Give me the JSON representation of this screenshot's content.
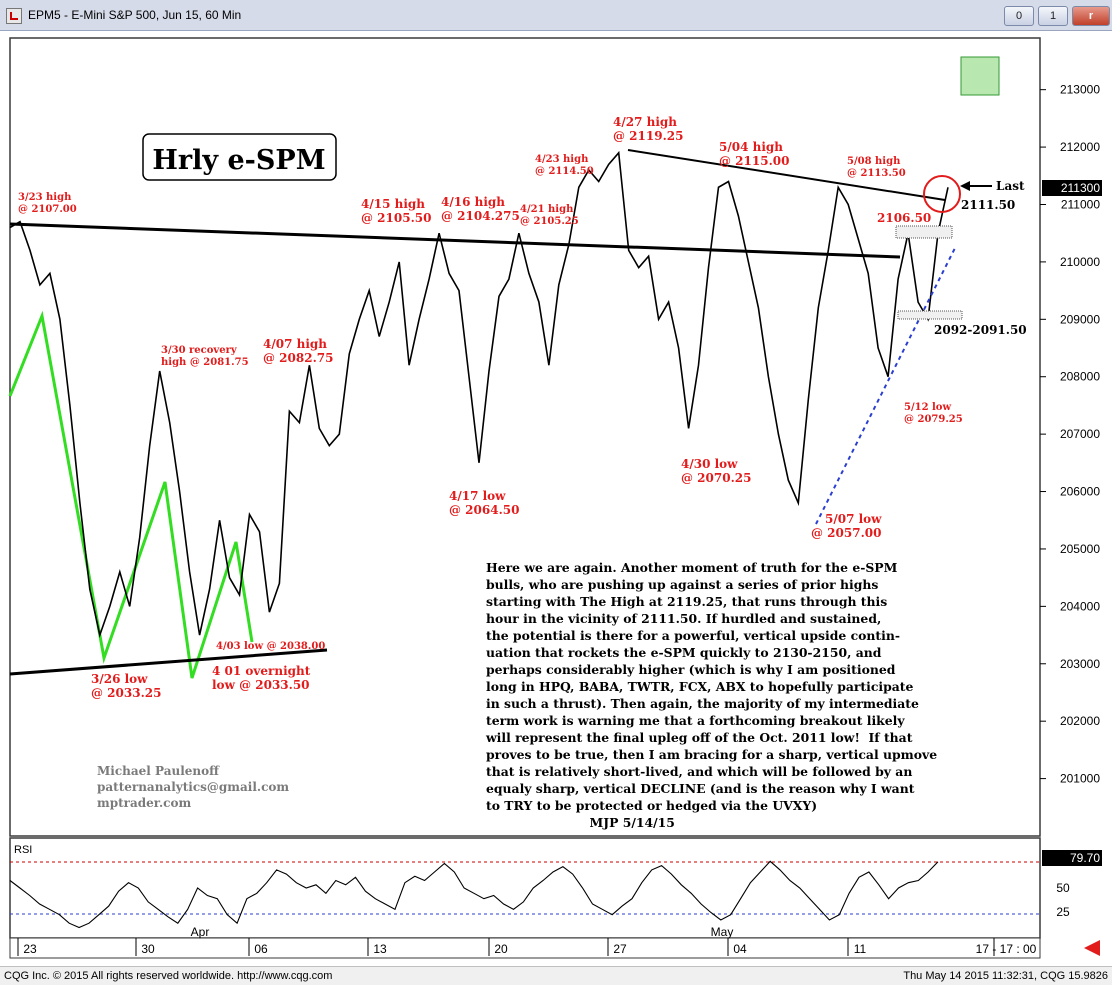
{
  "window": {
    "title": "EPM5 - E-Mini S&P 500, Jun 15, 60 Min",
    "minimize_label": "0",
    "maximize_label": "1",
    "close_label": "r"
  },
  "footer": {
    "copyright": "CQG Inc. © 2015 All rights reserved worldwide. http://www.cqg.com",
    "datetime": "Thu May 14 2015 11:32:31, CQG 15.9826"
  },
  "commentary": {
    "lines": [
      "Here we are again. Another moment of truth for the e-SPM",
      "bulls, who are pushing up against a series of prior highs",
      "starting with The High at 2119.25, that runs through this",
      "hour in the vicinity of 2111.50. If hurdled and sustained,",
      "the potential is there for a powerful, vertical upside contin-",
      "uation that rockets the e-SPM quickly to 2130-2150, and",
      "perhaps considerably higher (which is why I am positioned",
      "long in HPQ, BABA, TWTR, FCX, ABX to hopefully participate",
      "in such a thrust). Then again, the majority of my intermediate",
      "term work is warning me that a forthcoming breakout likely",
      "will represent the final upleg off of the Oct. 2011 low!  If that",
      "proves to be true, then I am bracing for a sharp, vertical upmove",
      "that is relatively short-lived, and which will be followed by an",
      "equaly sharp, vertical DECLINE (and is the reason why I want",
      "to TRY to be protected or hedged via the UVXY)",
      "                        MJP 5/14/15"
    ]
  },
  "chart_data": {
    "type": "line",
    "title": "Hrly e-SPM",
    "y_axis": {
      "ticks": [
        201000,
        202000,
        203000,
        204000,
        205000,
        206000,
        207000,
        208000,
        209000,
        210000,
        211000,
        212000,
        213000
      ],
      "ylim": [
        200000,
        213900
      ]
    },
    "x_axis": {
      "tick_labels": [
        "23",
        "30",
        "Apr",
        "06",
        "13",
        "20",
        "27",
        "May",
        "04",
        "11",
        "17 - 17 : 00"
      ]
    },
    "last_price_label": "211300",
    "last_label": "Last",
    "price_path": [
      {
        "x": 0,
        "y": 210600
      },
      {
        "x": 0.5,
        "y": 210700
      },
      {
        "x": 1,
        "y": 210200
      },
      {
        "x": 1.5,
        "y": 209600
      },
      {
        "x": 2,
        "y": 209800
      },
      {
        "x": 2.5,
        "y": 209000
      },
      {
        "x": 3,
        "y": 207500
      },
      {
        "x": 3.5,
        "y": 205800
      },
      {
        "x": 4,
        "y": 204300
      },
      {
        "x": 4.5,
        "y": 203500
      },
      {
        "x": 5,
        "y": 204000
      },
      {
        "x": 5.5,
        "y": 204600
      },
      {
        "x": 6,
        "y": 204000
      },
      {
        "x": 6.5,
        "y": 205200
      },
      {
        "x": 7,
        "y": 206800
      },
      {
        "x": 7.5,
        "y": 208100
      },
      {
        "x": 8,
        "y": 207200
      },
      {
        "x": 8.5,
        "y": 206000
      },
      {
        "x": 9,
        "y": 204600
      },
      {
        "x": 9.5,
        "y": 203500
      },
      {
        "x": 10,
        "y": 204300
      },
      {
        "x": 10.5,
        "y": 205500
      },
      {
        "x": 11,
        "y": 204500
      },
      {
        "x": 11.5,
        "y": 204200
      },
      {
        "x": 12,
        "y": 205600
      },
      {
        "x": 12.5,
        "y": 205300
      },
      {
        "x": 13,
        "y": 203900
      },
      {
        "x": 13.5,
        "y": 204400
      },
      {
        "x": 14,
        "y": 207400
      },
      {
        "x": 14.5,
        "y": 207200
      },
      {
        "x": 15,
        "y": 208200
      },
      {
        "x": 15.5,
        "y": 207100
      },
      {
        "x": 16,
        "y": 206800
      },
      {
        "x": 16.5,
        "y": 207000
      },
      {
        "x": 17,
        "y": 208400
      },
      {
        "x": 17.5,
        "y": 209000
      },
      {
        "x": 18,
        "y": 209500
      },
      {
        "x": 18.5,
        "y": 208700
      },
      {
        "x": 19,
        "y": 209300
      },
      {
        "x": 19.5,
        "y": 210000
      },
      {
        "x": 20,
        "y": 208200
      },
      {
        "x": 20.5,
        "y": 209000
      },
      {
        "x": 21,
        "y": 209700
      },
      {
        "x": 21.5,
        "y": 210500
      },
      {
        "x": 22,
        "y": 209800
      },
      {
        "x": 22.5,
        "y": 209500
      },
      {
        "x": 23,
        "y": 208000
      },
      {
        "x": 23.5,
        "y": 206500
      },
      {
        "x": 24,
        "y": 208100
      },
      {
        "x": 24.5,
        "y": 209400
      },
      {
        "x": 25,
        "y": 209700
      },
      {
        "x": 25.5,
        "y": 210500
      },
      {
        "x": 26,
        "y": 209800
      },
      {
        "x": 26.5,
        "y": 209300
      },
      {
        "x": 27,
        "y": 208200
      },
      {
        "x": 27.5,
        "y": 209600
      },
      {
        "x": 28,
        "y": 210300
      },
      {
        "x": 28.5,
        "y": 211300
      },
      {
        "x": 29,
        "y": 211600
      },
      {
        "x": 29.5,
        "y": 211400
      },
      {
        "x": 30,
        "y": 211700
      },
      {
        "x": 30.5,
        "y": 211900
      },
      {
        "x": 31,
        "y": 210200
      },
      {
        "x": 31.5,
        "y": 209900
      },
      {
        "x": 32,
        "y": 210100
      },
      {
        "x": 32.5,
        "y": 209000
      },
      {
        "x": 33,
        "y": 209300
      },
      {
        "x": 33.5,
        "y": 208500
      },
      {
        "x": 34,
        "y": 207100
      },
      {
        "x": 34.5,
        "y": 208200
      },
      {
        "x": 35,
        "y": 209900
      },
      {
        "x": 35.5,
        "y": 211300
      },
      {
        "x": 36,
        "y": 211400
      },
      {
        "x": 36.5,
        "y": 210800
      },
      {
        "x": 37,
        "y": 210000
      },
      {
        "x": 37.5,
        "y": 209200
      },
      {
        "x": 38,
        "y": 208000
      },
      {
        "x": 38.5,
        "y": 207000
      },
      {
        "x": 39,
        "y": 206200
      },
      {
        "x": 39.5,
        "y": 205800
      },
      {
        "x": 40,
        "y": 207600
      },
      {
        "x": 40.5,
        "y": 209200
      },
      {
        "x": 41,
        "y": 210200
      },
      {
        "x": 41.5,
        "y": 211300
      },
      {
        "x": 42,
        "y": 211000
      },
      {
        "x": 42.5,
        "y": 210400
      },
      {
        "x": 43,
        "y": 209800
      },
      {
        "x": 43.5,
        "y": 208500
      },
      {
        "x": 44,
        "y": 208000
      },
      {
        "x": 44.5,
        "y": 209700
      },
      {
        "x": 45,
        "y": 210500
      },
      {
        "x": 45.5,
        "y": 209300
      },
      {
        "x": 46,
        "y": 209000
      },
      {
        "x": 46.5,
        "y": 210500
      },
      {
        "x": 47,
        "y": 211300
      }
    ],
    "rsi": {
      "label": "RSI",
      "value_label": "79.70",
      "ticks": [
        25,
        50
      ],
      "ylim": [
        10,
        100
      ],
      "overbought": 80,
      "oversold": 20,
      "values": [
        62,
        55,
        48,
        40,
        35,
        30,
        22,
        18,
        22,
        30,
        38,
        52,
        60,
        55,
        42,
        35,
        28,
        22,
        35,
        55,
        48,
        45,
        30,
        22,
        45,
        50,
        60,
        72,
        68,
        60,
        55,
        58,
        50,
        62,
        58,
        65,
        52,
        45,
        40,
        35,
        60,
        66,
        62,
        70,
        78,
        70,
        55,
        50,
        45,
        48,
        40,
        35,
        42,
        55,
        62,
        70,
        75,
        68,
        55,
        40,
        35,
        30,
        38,
        45,
        60,
        72,
        76,
        68,
        58,
        50,
        40,
        32,
        25,
        30,
        45,
        60,
        70,
        80,
        72,
        62,
        55,
        45,
        35,
        25,
        30,
        50,
        65,
        70,
        58,
        45,
        55,
        60,
        62,
        70,
        79.7
      ]
    },
    "legend": "none",
    "grid": "off"
  },
  "annotations": {
    "hrly_box": "Hrly e-SPM",
    "h_323": [
      "3/23 high",
      "@ 2107.00"
    ],
    "h_415": [
      "4/15 high",
      "@ 2105.50"
    ],
    "h_416": [
      "4/16 high",
      "@ 2104.275"
    ],
    "h_421": [
      "4/21 high",
      "@ 2105.25"
    ],
    "h_423": [
      "4/23 high",
      "@ 2114.50"
    ],
    "h_427": [
      "4/27 high",
      "@ 2119.25"
    ],
    "h_504": [
      "5/04 high",
      "@ 2115.00"
    ],
    "h_508": [
      "5/08 high",
      "@ 2113.50"
    ],
    "h_330": [
      "3/30 recovery",
      "high @ 2081.75"
    ],
    "h_407": [
      "4/07 high",
      "@ 2082.75"
    ],
    "l_417": [
      "4/17 low",
      "@ 2064.50"
    ],
    "l_430": [
      "4/30 low",
      "@ 2070.25"
    ],
    "l_507": [
      "5/07 low",
      "@ 2057.00"
    ],
    "l_512": [
      "5/12 low",
      "@ 2079.25"
    ],
    "l_326": [
      "3/26 low",
      "@ 2033.25"
    ],
    "l_401": [
      "4 01 overnight",
      "low @ 2033.50"
    ],
    "l_403": "4/03 low @ 2038.00",
    "lvl_2106": "2106.50",
    "lvl_2111": "2111.50",
    "lvl_2092": "2092-2091.50",
    "author": [
      "Michael Paulenoff",
      "patternanalytics@gmail.com",
      "mptrader.com"
    ]
  },
  "colors": {
    "accent_red": "#e21b1b",
    "zigzag_green": "#33dd22",
    "trendline": "#000000",
    "support_dotted": "#2a3fd0",
    "panel_border": "#3a3a3a"
  }
}
